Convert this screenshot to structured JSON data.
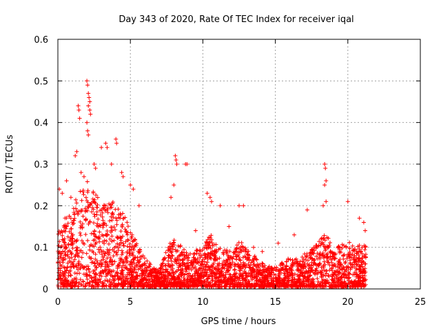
{
  "chart_data": {
    "type": "scatter",
    "title": "Day 343 of 2020, Rate Of TEC Index for receiver iqal",
    "xlabel": "GPS time / hours",
    "ylabel": "ROTI / TECUs",
    "xlim": [
      0,
      25
    ],
    "ylim": [
      0,
      0.6
    ],
    "xticks": [
      0,
      5,
      10,
      15,
      20,
      25
    ],
    "yticks": [
      0,
      0.1,
      0.2,
      0.3,
      0.4,
      0.5,
      0.6
    ],
    "xtick_labels": [
      "0",
      "5",
      "10",
      "15",
      "20",
      "25"
    ],
    "ytick_labels": [
      "0",
      "0.1",
      "0.2",
      "0.3",
      "0.4",
      "0.5",
      "0.6"
    ],
    "grid": true,
    "marker": "+",
    "color": "#ff0000",
    "series": [
      {
        "name": "ROTI",
        "points": [
          [
            2.0,
            0.5
          ],
          [
            2.05,
            0.49
          ],
          [
            2.1,
            0.47
          ],
          [
            2.15,
            0.46
          ],
          [
            2.2,
            0.45
          ],
          [
            2.1,
            0.44
          ],
          [
            2.2,
            0.43
          ],
          [
            1.4,
            0.44
          ],
          [
            1.45,
            0.43
          ],
          [
            1.5,
            0.41
          ],
          [
            2.25,
            0.42
          ],
          [
            2.0,
            0.4
          ],
          [
            2.05,
            0.38
          ],
          [
            2.1,
            0.37
          ],
          [
            1.3,
            0.33
          ],
          [
            1.2,
            0.32
          ],
          [
            3.3,
            0.35
          ],
          [
            3.4,
            0.34
          ],
          [
            4.0,
            0.36
          ],
          [
            4.05,
            0.35
          ],
          [
            3.0,
            0.34
          ],
          [
            2.5,
            0.3
          ],
          [
            2.6,
            0.29
          ],
          [
            1.6,
            0.28
          ],
          [
            1.8,
            0.27
          ],
          [
            3.7,
            0.3
          ],
          [
            4.4,
            0.28
          ],
          [
            4.5,
            0.27
          ],
          [
            0.1,
            0.24
          ],
          [
            0.3,
            0.23
          ],
          [
            0.6,
            0.26
          ],
          [
            0.9,
            0.22
          ],
          [
            5.0,
            0.25
          ],
          [
            5.2,
            0.24
          ],
          [
            5.6,
            0.2
          ],
          [
            8.1,
            0.32
          ],
          [
            8.15,
            0.31
          ],
          [
            8.2,
            0.3
          ],
          [
            8.8,
            0.3
          ],
          [
            8.9,
            0.3
          ],
          [
            8.0,
            0.25
          ],
          [
            7.8,
            0.22
          ],
          [
            10.3,
            0.23
          ],
          [
            10.5,
            0.22
          ],
          [
            10.6,
            0.21
          ],
          [
            11.2,
            0.2
          ],
          [
            12.5,
            0.2
          ],
          [
            12.8,
            0.2
          ],
          [
            18.4,
            0.3
          ],
          [
            18.45,
            0.29
          ],
          [
            18.5,
            0.26
          ],
          [
            18.4,
            0.25
          ],
          [
            18.5,
            0.21
          ],
          [
            18.3,
            0.2
          ],
          [
            20.0,
            0.21
          ],
          [
            17.2,
            0.19
          ],
          [
            20.8,
            0.17
          ],
          [
            21.1,
            0.16
          ],
          [
            21.2,
            0.14
          ],
          [
            15.2,
            0.11
          ],
          [
            16.3,
            0.13
          ],
          [
            14.1,
            0.09
          ],
          [
            13.5,
            0.1
          ],
          [
            7.3,
            0.07
          ],
          [
            9.5,
            0.14
          ],
          [
            11.8,
            0.15
          ]
        ]
      }
    ]
  }
}
